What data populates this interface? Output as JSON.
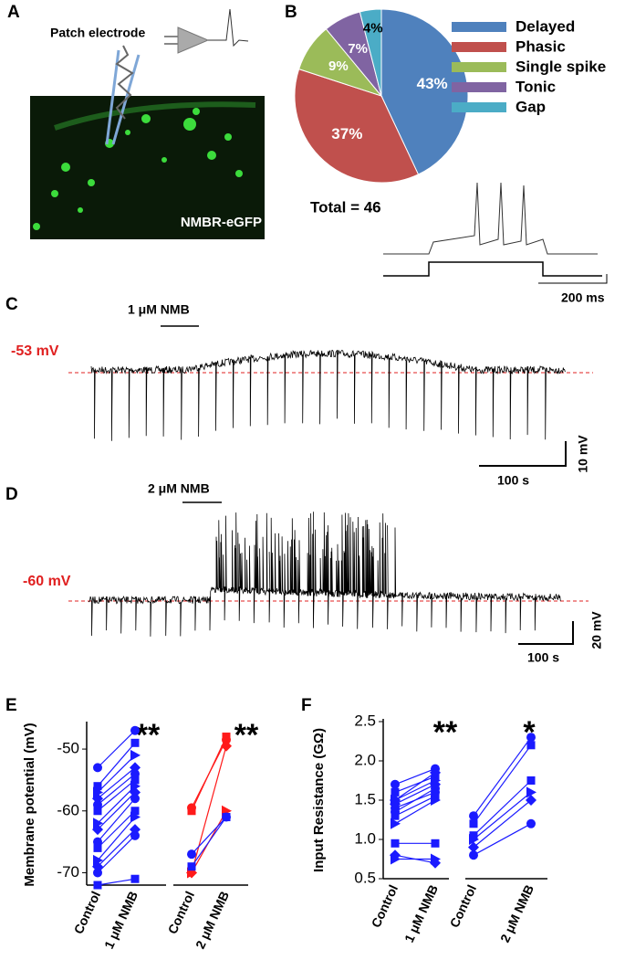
{
  "panel_labels": [
    "A",
    "B",
    "C",
    "D",
    "E",
    "F"
  ],
  "panel_a": {
    "electrode_label": "Patch electrode",
    "image_label": "NMBR-eGFP"
  },
  "panel_b": {
    "total": "Total = 46",
    "time_scale": "200 ms"
  },
  "panel_c": {
    "drug": "1 μM NMB",
    "potential": "-53 mV",
    "time_scale": "100 s",
    "voltage_scale": "10 mV"
  },
  "panel_d": {
    "drug": "2 μM NMB",
    "potential": "-60 mV",
    "time_scale": "100 s",
    "voltage_scale": "20 mV"
  },
  "chart_data": [
    {
      "type": "pie",
      "categories": [
        "Delayed",
        "Phasic",
        "Single spike",
        "Tonic",
        "Gap"
      ],
      "values": [
        43,
        37,
        9,
        7,
        4
      ],
      "value_labels": [
        "43%",
        "37%",
        "9%",
        "7%",
        "4%"
      ],
      "colors": [
        "#4f81bd",
        "#c0504d",
        "#9bbb59",
        "#8064a2",
        "#4bacc6"
      ]
    },
    {
      "type": "paired",
      "y_label": "Membrane potential (mV)",
      "categories": [
        "Control",
        "1 μM NMB"
      ],
      "annotation": "**",
      "ylim": [
        -72,
        -46
      ],
      "yticks": [
        -50,
        -60,
        -70
      ],
      "series": [
        {
          "color": "#1a1aff",
          "values": [
            -53,
            -47
          ]
        },
        {
          "color": "#1a1aff",
          "values": [
            -56,
            -49
          ]
        },
        {
          "color": "#1a1aff",
          "values": [
            -57,
            -51
          ]
        },
        {
          "color": "#1a1aff",
          "values": [
            -58,
            -53
          ]
        },
        {
          "color": "#1a1aff",
          "values": [
            -59,
            -54
          ]
        },
        {
          "color": "#1a1aff",
          "values": [
            -60,
            -55
          ]
        },
        {
          "color": "#1a1aff",
          "values": [
            -62,
            -56
          ]
        },
        {
          "color": "#1a1aff",
          "values": [
            -63,
            -57
          ]
        },
        {
          "color": "#1a1aff",
          "values": [
            -65,
            -58
          ]
        },
        {
          "color": "#1a1aff",
          "values": [
            -66,
            -60
          ]
        },
        {
          "color": "#1a1aff",
          "values": [
            -68,
            -61
          ]
        },
        {
          "color": "#1a1aff",
          "values": [
            -69,
            -63
          ]
        },
        {
          "color": "#1a1aff",
          "values": [
            -70,
            -64
          ]
        },
        {
          "color": "#1a1aff",
          "values": [
            -72,
            -71
          ]
        }
      ]
    },
    {
      "type": "paired",
      "categories": [
        "Control",
        "2 μM NMB"
      ],
      "annotation": "**",
      "ylim": [
        -72,
        -46
      ],
      "series": [
        {
          "color": "#ff1a1a",
          "values": [
            -59.5,
            -48.5
          ]
        },
        {
          "color": "#ff1a1a",
          "values": [
            -60,
            -48
          ]
        },
        {
          "color": "#ff1a1a",
          "values": [
            -70,
            -60
          ]
        },
        {
          "color": "#ff1a1a",
          "values": [
            -70,
            -49.5
          ]
        },
        {
          "color": "#1a1aff",
          "values": [
            -67,
            -61
          ]
        },
        {
          "color": "#1a1aff",
          "values": [
            -69,
            -61
          ]
        }
      ]
    },
    {
      "type": "paired",
      "y_label": "Input Resistance (GΩ)",
      "categories": [
        "Control",
        "1 μM NMB"
      ],
      "annotation": "**",
      "ylim": [
        0.5,
        2.5
      ],
      "yticks": [
        0.5,
        {
          "value": 1,
          "label": "1.0"
        },
        1.5,
        {
          "value": 2,
          "label": "2.0"
        },
        2.5
      ],
      "series": [
        {
          "color": "#1a1aff",
          "values": [
            1.7,
            1.9
          ]
        },
        {
          "color": "#1a1aff",
          "values": [
            1.6,
            1.8
          ]
        },
        {
          "color": "#1a1aff",
          "values": [
            1.5,
            1.75
          ]
        },
        {
          "color": "#1a1aff",
          "values": [
            1.45,
            1.7
          ]
        },
        {
          "color": "#1a1aff",
          "values": [
            1.4,
            1.6
          ]
        },
        {
          "color": "#1a1aff",
          "values": [
            1.3,
            1.55
          ]
        },
        {
          "color": "#1a1aff",
          "values": [
            1.2,
            1.5
          ]
        },
        {
          "color": "#1a1aff",
          "values": [
            1.5,
            1.85
          ]
        },
        {
          "color": "#1a1aff",
          "values": [
            1.35,
            1.65
          ]
        },
        {
          "color": "#1a1aff",
          "values": [
            0.95,
            0.95
          ]
        },
        {
          "color": "#1a1aff",
          "values": [
            0.75,
            0.75
          ]
        },
        {
          "color": "#1a1aff",
          "values": [
            0.8,
            0.7
          ]
        }
      ]
    },
    {
      "type": "paired",
      "categories": [
        "Control",
        "2 μM NMB"
      ],
      "annotation": "*",
      "ylim": [
        0.5,
        2.5
      ],
      "series": [
        {
          "color": "#1a1aff",
          "values": [
            1.3,
            2.3
          ]
        },
        {
          "color": "#1a1aff",
          "values": [
            1.2,
            2.2
          ]
        },
        {
          "color": "#1a1aff",
          "values": [
            1.0,
            1.6
          ]
        },
        {
          "color": "#1a1aff",
          "values": [
            0.9,
            1.5
          ]
        },
        {
          "color": "#1a1aff",
          "values": [
            0.8,
            1.2
          ]
        },
        {
          "color": "#1a1aff",
          "values": [
            1.05,
            1.75
          ]
        }
      ]
    }
  ]
}
